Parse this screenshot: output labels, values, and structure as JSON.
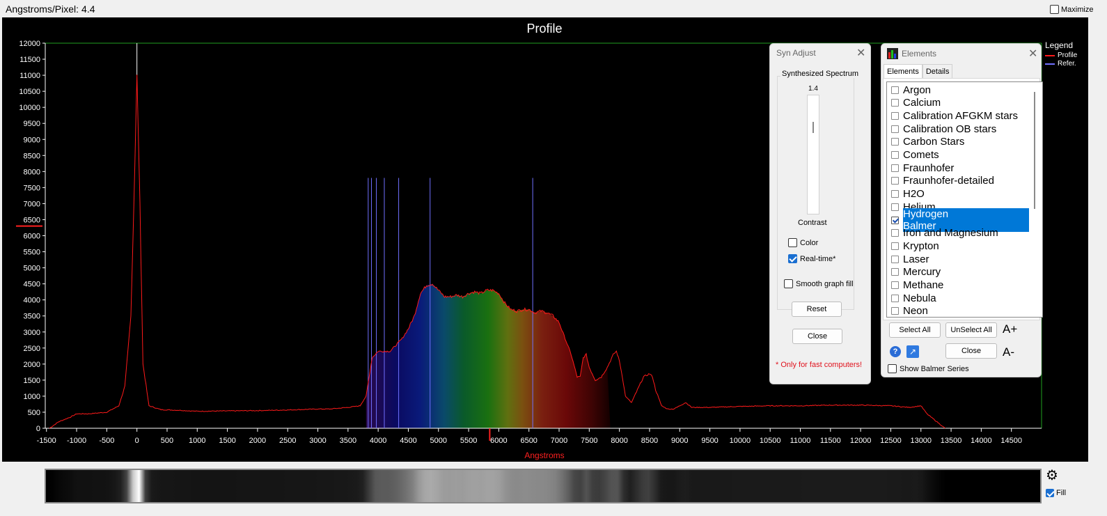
{
  "header": {
    "angstroms_per_pixel_label": "Angstroms/Pixel:",
    "angstroms_per_pixel_value": "4.4",
    "maximize_label": "Maximize",
    "maximize_checked": false
  },
  "chart_data": {
    "type": "line",
    "title": "Profile",
    "xlabel": "Angstroms",
    "ylabel": "",
    "xlim": [
      -1520,
      15000
    ],
    "ylim": [
      0,
      12000
    ],
    "x_ticks": [
      -1500,
      -1000,
      -500,
      0,
      500,
      1000,
      1500,
      2000,
      2500,
      3000,
      3500,
      4000,
      4500,
      5000,
      5500,
      6000,
      6500,
      7000,
      7500,
      8000,
      8500,
      9000,
      9500,
      10000,
      10500,
      11000,
      11500,
      12000,
      12500,
      13000,
      13500,
      14000,
      14500
    ],
    "y_ticks": [
      0,
      500,
      1000,
      1500,
      2000,
      2500,
      3000,
      3500,
      4000,
      4500,
      5000,
      5500,
      6000,
      6500,
      7000,
      7500,
      8000,
      8500,
      9000,
      9500,
      10000,
      10500,
      11000,
      11500,
      12000
    ],
    "legend_position": "top-right",
    "series": [
      {
        "name": "Profile",
        "color": "#ff1a1a",
        "x": [
          -1450,
          -1300,
          -1100,
          -1000,
          -800,
          -500,
          -300,
          -200,
          -100,
          -50,
          0,
          50,
          100,
          200,
          400,
          700,
          1000,
          1500,
          2000,
          2500,
          3000,
          3200,
          3500,
          3700,
          3800,
          3900,
          4000,
          4100,
          4200,
          4300,
          4400,
          4500,
          4600,
          4700,
          4800,
          4900,
          5000,
          5100,
          5200,
          5300,
          5400,
          5500,
          5600,
          5700,
          5800,
          5900,
          6000,
          6100,
          6200,
          6300,
          6400,
          6500,
          6600,
          6700,
          6800,
          6900,
          7000,
          7100,
          7200,
          7300,
          7350,
          7400,
          7450,
          7500,
          7600,
          7700,
          7800,
          7900,
          7950,
          8000,
          8050,
          8100,
          8200,
          8300,
          8400,
          8500,
          8550,
          8600,
          8700,
          8800,
          8900,
          9000,
          9100,
          9200,
          9500,
          10000,
          10500,
          11000,
          11500,
          12000,
          12500,
          12800,
          13000,
          13100,
          13200,
          13300,
          13400
        ],
        "y": [
          0,
          200,
          350,
          450,
          450,
          500,
          700,
          1300,
          3500,
          7000,
          11000,
          7000,
          2000,
          700,
          580,
          560,
          530,
          540,
          550,
          570,
          600,
          600,
          650,
          700,
          1000,
          2200,
          2400,
          2400,
          2400,
          2600,
          2800,
          3100,
          3500,
          4200,
          4450,
          4500,
          4300,
          4100,
          4100,
          4150,
          4100,
          4200,
          4250,
          4200,
          4300,
          4300,
          4200,
          3900,
          3700,
          3650,
          3700,
          3700,
          3600,
          3650,
          3600,
          3500,
          3300,
          2800,
          2300,
          1600,
          1600,
          2200,
          2300,
          1900,
          1500,
          1600,
          1900,
          2300,
          2400,
          2100,
          1600,
          1000,
          800,
          1200,
          1600,
          1700,
          1600,
          1200,
          700,
          600,
          600,
          700,
          800,
          650,
          650,
          680,
          700,
          700,
          720,
          720,
          700,
          650,
          700,
          450,
          300,
          150,
          0
        ]
      },
      {
        "name": "Refer.",
        "color": "#7070ff",
        "x": [
          3835,
          3889,
          3970,
          4102,
          4340,
          4861,
          6563
        ],
        "y": [
          7800,
          7800,
          7800,
          7800,
          7800,
          7800,
          7800
        ]
      }
    ]
  },
  "legend": {
    "title": "Legend",
    "items": [
      {
        "label": "Profile",
        "color": "#ff1a1a"
      },
      {
        "label": "Refer.",
        "color": "#7070ff"
      }
    ]
  },
  "syn_adjust": {
    "title": "Syn Adjust",
    "group_title": "Synthesized Spectrum",
    "slider_value": "1.4",
    "slider_level": 0.72,
    "contrast_label": "Contrast",
    "color_label": "Color",
    "color_checked": false,
    "realtime_label": "Real-time*",
    "realtime_checked": true,
    "smooth_label": "Smooth graph fill",
    "smooth_checked": false,
    "reset_label": "Reset",
    "close_label": "Close",
    "note": "* Only for fast computers!"
  },
  "elements": {
    "title": "Elements",
    "tabs": [
      "Elements",
      "Details"
    ],
    "active_tab": "Elements",
    "items": [
      {
        "label": "Argon",
        "checked": false
      },
      {
        "label": "Calcium",
        "checked": false
      },
      {
        "label": "Calibration AFGKM stars",
        "checked": false
      },
      {
        "label": "Calibration OB stars",
        "checked": false
      },
      {
        "label": "Carbon Stars",
        "checked": false
      },
      {
        "label": "Comets",
        "checked": false
      },
      {
        "label": "Fraunhofer",
        "checked": false
      },
      {
        "label": "Fraunhofer-detailed",
        "checked": false
      },
      {
        "label": "H2O",
        "checked": false
      },
      {
        "label": "Helium",
        "checked": false
      },
      {
        "label": "Hydrogen Balmer",
        "checked": true,
        "selected": true
      },
      {
        "label": "Iron and Magnesium",
        "checked": false
      },
      {
        "label": "Krypton",
        "checked": false
      },
      {
        "label": "Laser",
        "checked": false
      },
      {
        "label": "Mercury",
        "checked": false
      },
      {
        "label": "Methane",
        "checked": false
      },
      {
        "label": "Nebula",
        "checked": false
      },
      {
        "label": "Neon",
        "checked": false
      }
    ],
    "select_all_label": "Select All",
    "unselect_all_label": "UnSelect All",
    "font_increase_label": "A+",
    "font_decrease_label": "A-",
    "close_label": "Close",
    "show_balmer_label": "Show Balmer Series",
    "show_balmer_checked": false
  },
  "footer": {
    "fill_label": "Fill",
    "fill_checked": true
  }
}
